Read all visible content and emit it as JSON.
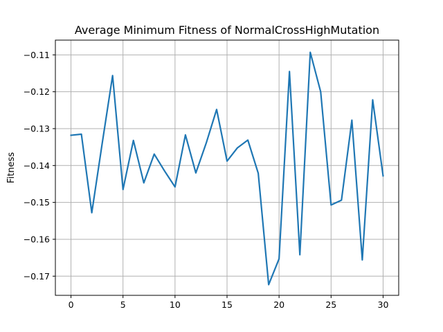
{
  "chart_data": {
    "type": "line",
    "title": "Average Minimum Fitness of NormalCrossHighMutation",
    "xlabel": "",
    "ylabel": "Fitness",
    "xlim": [
      -1.5,
      31.5
    ],
    "ylim": [
      -0.1752,
      -0.106
    ],
    "grid": true,
    "x_ticks": [
      0,
      5,
      10,
      15,
      20,
      25,
      30
    ],
    "x_tick_labels": [
      "0",
      "5",
      "10",
      "15",
      "20",
      "25",
      "30"
    ],
    "y_ticks": [
      -0.17,
      -0.16,
      -0.15,
      -0.14,
      -0.13,
      -0.12,
      -0.11
    ],
    "y_tick_labels": [
      "−0.17",
      "−0.16",
      "−0.15",
      "−0.14",
      "−0.13",
      "−0.12",
      "−0.11"
    ],
    "series": [
      {
        "color": "#1f77b4",
        "x": [
          0,
          1,
          2,
          3,
          4,
          5,
          6,
          7,
          8,
          9,
          10,
          11,
          12,
          13,
          14,
          15,
          16,
          17,
          18,
          19,
          20,
          21,
          22,
          23,
          24,
          25,
          26,
          27,
          28,
          29,
          30
        ],
        "y": [
          -0.1318,
          -0.1315,
          -0.1528,
          -0.134,
          -0.1156,
          -0.1465,
          -0.1332,
          -0.1447,
          -0.1369,
          -0.1415,
          -0.1458,
          -0.1317,
          -0.142,
          -0.1339,
          -0.1248,
          -0.1388,
          -0.1352,
          -0.1331,
          -0.1421,
          -0.1723,
          -0.1653,
          -0.1145,
          -0.1642,
          -0.1093,
          -0.12,
          -0.1507,
          -0.1494,
          -0.1277,
          -0.1656,
          -0.1222,
          -0.1428
        ]
      }
    ]
  }
}
